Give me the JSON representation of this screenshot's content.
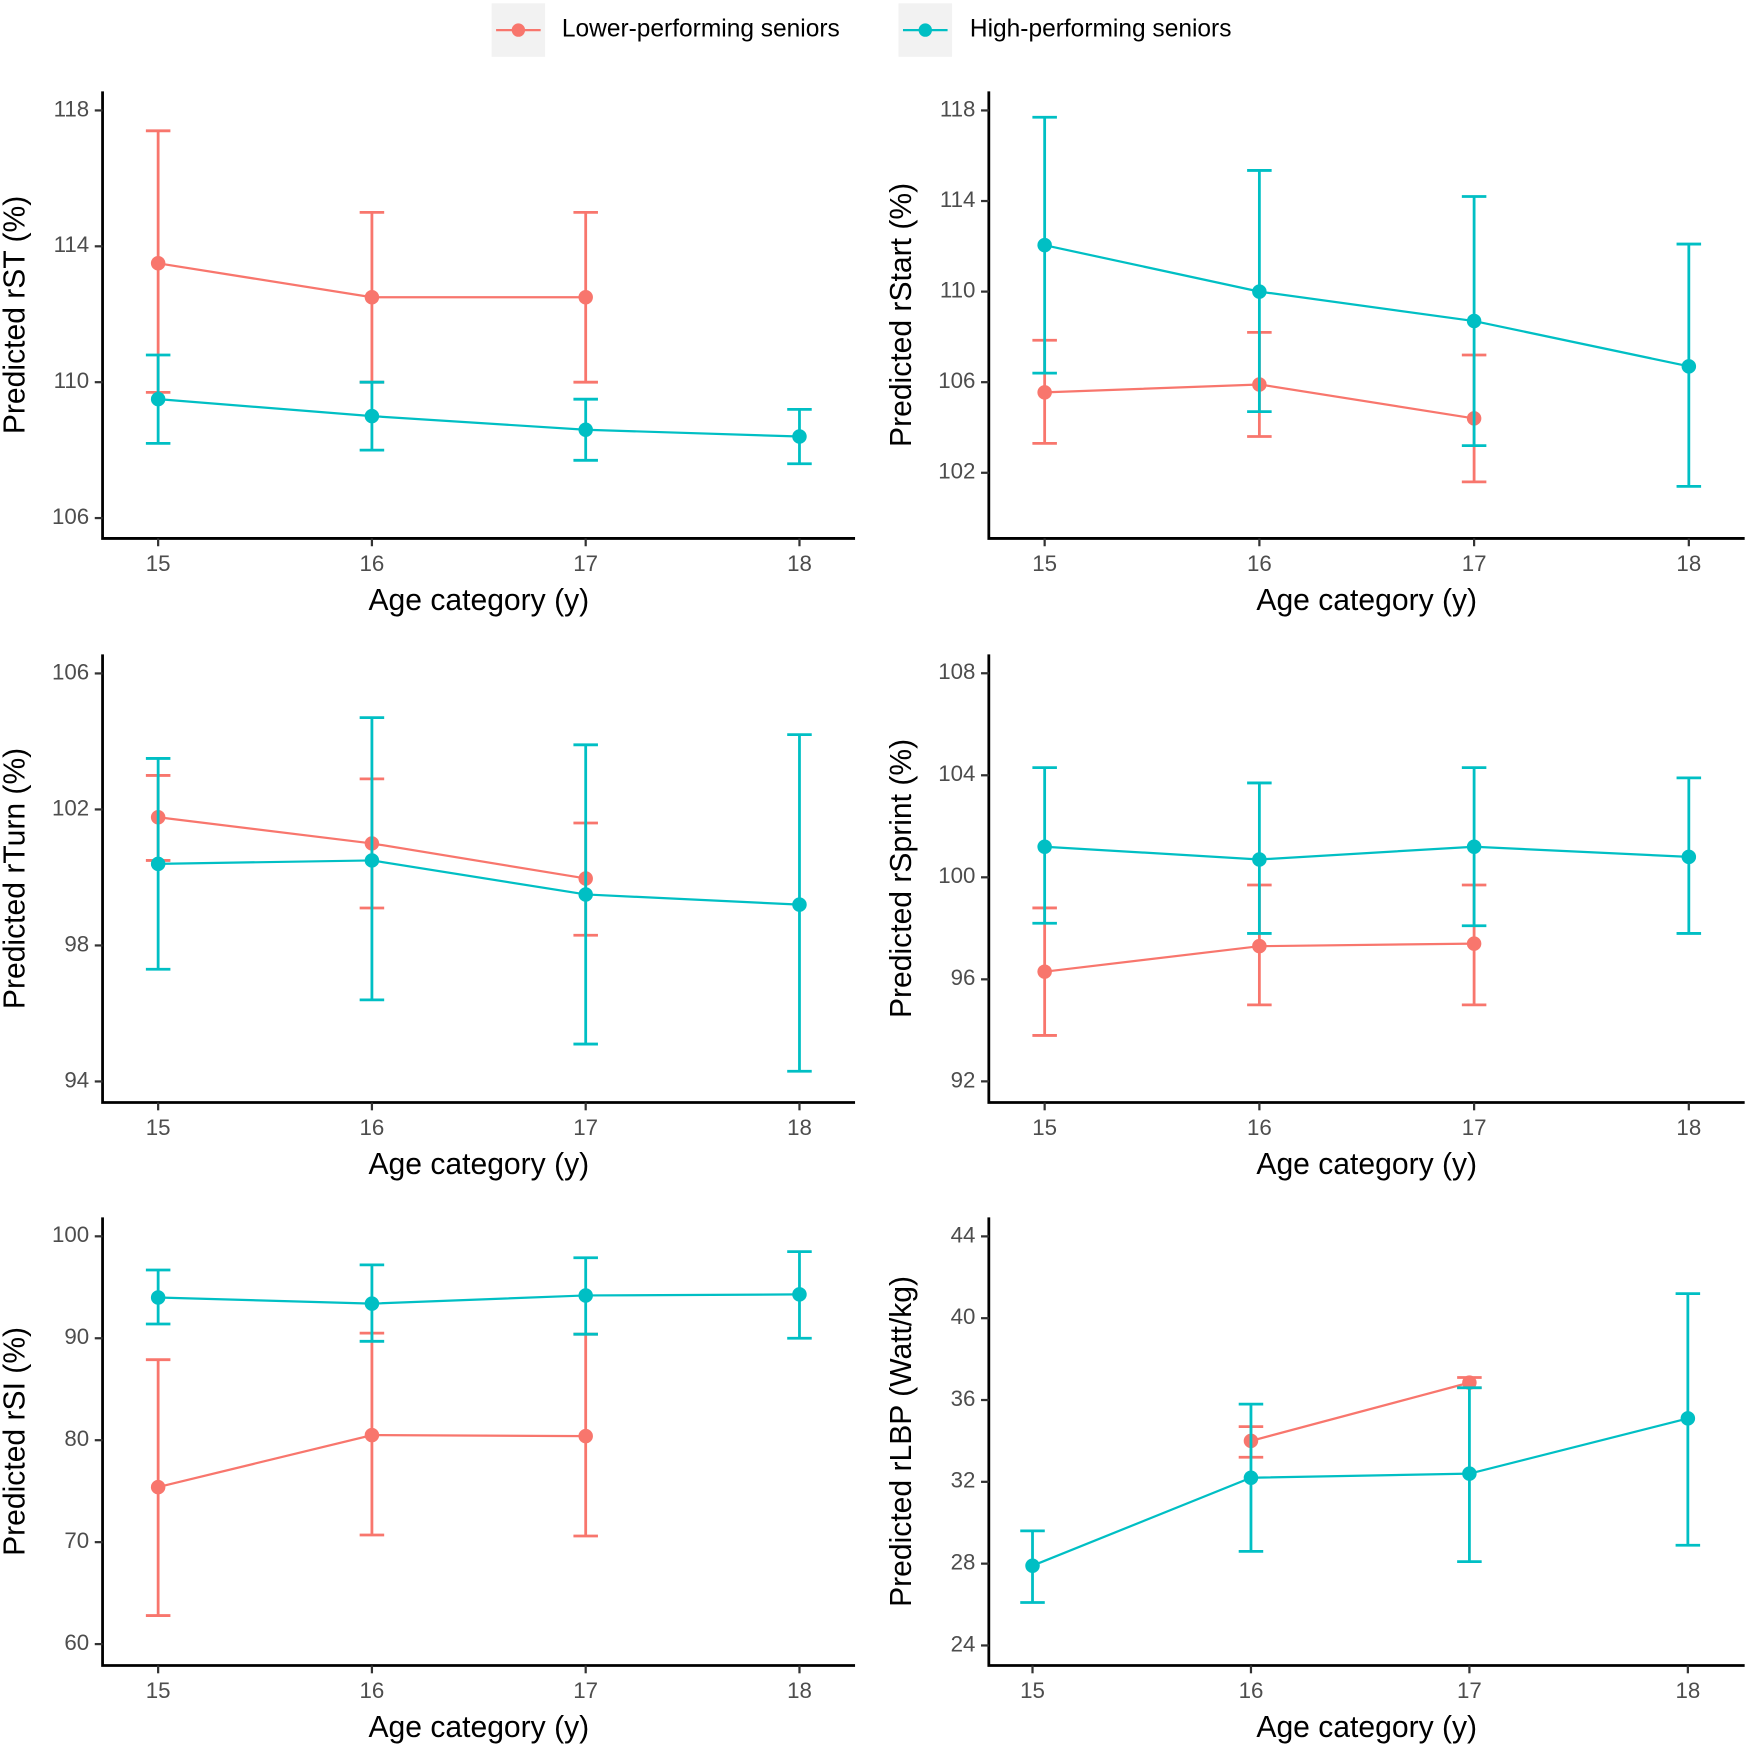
{
  "legend": {
    "position": "top",
    "items": [
      {
        "name": "Lower-performing seniors",
        "color": "#f8766d"
      },
      {
        "name": "High-performing seniors",
        "color": "#00bfc4"
      }
    ]
  },
  "chart_data": [
    {
      "type": "line",
      "y_label": "Predicted rST (%)",
      "x_label": "Age category (y)",
      "xlim": [
        14.74,
        18.26
      ],
      "xticks": [
        15,
        16,
        17,
        18
      ],
      "ylim": [
        105.4,
        118.56
      ],
      "yticks": [
        106,
        110,
        114,
        118
      ],
      "series": [
        {
          "x": [
            15,
            16,
            17
          ],
          "values": [
            113.5,
            112.5,
            112.5
          ],
          "lower": [
            109.7,
            110.0,
            110.0
          ],
          "upper": [
            117.4,
            115.0,
            115.0
          ]
        },
        {
          "x": [
            15,
            16,
            17,
            18
          ],
          "values": [
            109.5,
            109.0,
            108.6,
            108.4
          ],
          "lower": [
            108.2,
            108.0,
            107.7,
            107.6
          ],
          "upper": [
            110.8,
            110.0,
            109.5,
            109.2
          ]
        }
      ]
    },
    {
      "type": "line",
      "y_label": "Predicted rStart (%)",
      "x_label": "Age category (y)",
      "xlim": [
        14.74,
        18.26
      ],
      "xticks": [
        15,
        16,
        17,
        18
      ],
      "ylim": [
        99.1,
        118.84
      ],
      "yticks": [
        102,
        106,
        110,
        114,
        118
      ],
      "series": [
        {
          "x": [
            15,
            16,
            17
          ],
          "values": [
            105.55,
            105.9,
            104.4
          ],
          "lower": [
            103.3,
            103.6,
            101.6
          ],
          "upper": [
            107.85,
            108.2,
            107.2
          ]
        },
        {
          "x": [
            15,
            16,
            17,
            18
          ],
          "values": [
            112.05,
            110.0,
            108.7,
            106.7
          ],
          "lower": [
            106.4,
            104.7,
            103.2,
            101.4
          ],
          "upper": [
            117.7,
            115.35,
            114.2,
            112.1
          ]
        }
      ]
    },
    {
      "type": "line",
      "y_label": "Predicted rTurn (%)",
      "x_label": "Age category (y)",
      "xlim": [
        14.74,
        18.26
      ],
      "xticks": [
        15,
        16,
        17,
        18
      ],
      "ylim": [
        93.38,
        106.56
      ],
      "yticks": [
        94,
        98,
        102,
        106
      ],
      "series": [
        {
          "x": [
            15,
            16,
            17
          ],
          "values": [
            101.77,
            101.0,
            99.97
          ],
          "lower": [
            100.5,
            99.1,
            98.3
          ],
          "upper": [
            103.0,
            102.9,
            101.6
          ]
        },
        {
          "x": [
            15,
            16,
            17,
            18
          ],
          "values": [
            100.4,
            100.5,
            99.5,
            99.2
          ],
          "lower": [
            97.3,
            96.4,
            95.1,
            94.3
          ],
          "upper": [
            103.5,
            104.7,
            103.9,
            104.2
          ]
        }
      ]
    },
    {
      "type": "line",
      "y_label": "Predicted rSprint (%)",
      "x_label": "Age category (y)",
      "xlim": [
        14.74,
        18.26
      ],
      "xticks": [
        15,
        16,
        17,
        18
      ],
      "ylim": [
        91.17,
        108.74
      ],
      "yticks": [
        92,
        96,
        100,
        104,
        108
      ],
      "series": [
        {
          "x": [
            15,
            16,
            17
          ],
          "values": [
            96.3,
            97.3,
            97.4
          ],
          "lower": [
            93.8,
            95.0,
            95.0
          ],
          "upper": [
            98.8,
            99.7,
            99.7
          ]
        },
        {
          "x": [
            15,
            16,
            17,
            18
          ],
          "values": [
            101.2,
            100.7,
            101.2,
            100.8
          ],
          "lower": [
            98.2,
            97.8,
            98.1,
            97.8
          ],
          "upper": [
            104.3,
            103.7,
            104.3,
            103.9
          ]
        }
      ]
    },
    {
      "type": "line",
      "y_label": "Predicted rSI (%)",
      "x_label": "Age category (y)",
      "xlim": [
        14.74,
        18.26
      ],
      "xticks": [
        15,
        16,
        17,
        18
      ],
      "ylim": [
        57.9,
        101.86
      ],
      "yticks": [
        60,
        70,
        80,
        90,
        100
      ],
      "series": [
        {
          "x": [
            15,
            16,
            17
          ],
          "values": [
            75.4,
            80.5,
            80.4
          ],
          "lower": [
            62.8,
            70.7,
            70.6
          ],
          "upper": [
            87.9,
            90.5,
            90.4
          ]
        },
        {
          "x": [
            15,
            16,
            17,
            18
          ],
          "values": [
            94.0,
            93.4,
            94.2,
            94.3
          ],
          "lower": [
            91.4,
            89.7,
            90.4,
            90.0
          ],
          "upper": [
            96.7,
            97.2,
            97.9,
            98.5
          ]
        }
      ]
    },
    {
      "type": "line",
      "y_label": "Predicted rLBP (Watt/kg)",
      "x_label": "Age category (y)",
      "xlim": [
        14.8,
        18.26
      ],
      "xticks": [
        15,
        16,
        17,
        18
      ],
      "ylim": [
        23.02,
        44.93
      ],
      "yticks": [
        24,
        28,
        32,
        36,
        40,
        44
      ],
      "series": [
        {
          "x": [
            16,
            17
          ],
          "values": [
            34.0,
            36.85
          ],
          "lower": [
            33.2,
            36.6
          ],
          "upper": [
            34.7,
            37.1
          ]
        },
        {
          "x": [
            15,
            16,
            17,
            18
          ],
          "values": [
            27.9,
            32.2,
            32.4,
            35.1
          ],
          "lower": [
            26.1,
            28.6,
            28.1,
            28.9
          ],
          "upper": [
            29.6,
            35.8,
            36.6,
            41.2
          ]
        }
      ]
    }
  ]
}
